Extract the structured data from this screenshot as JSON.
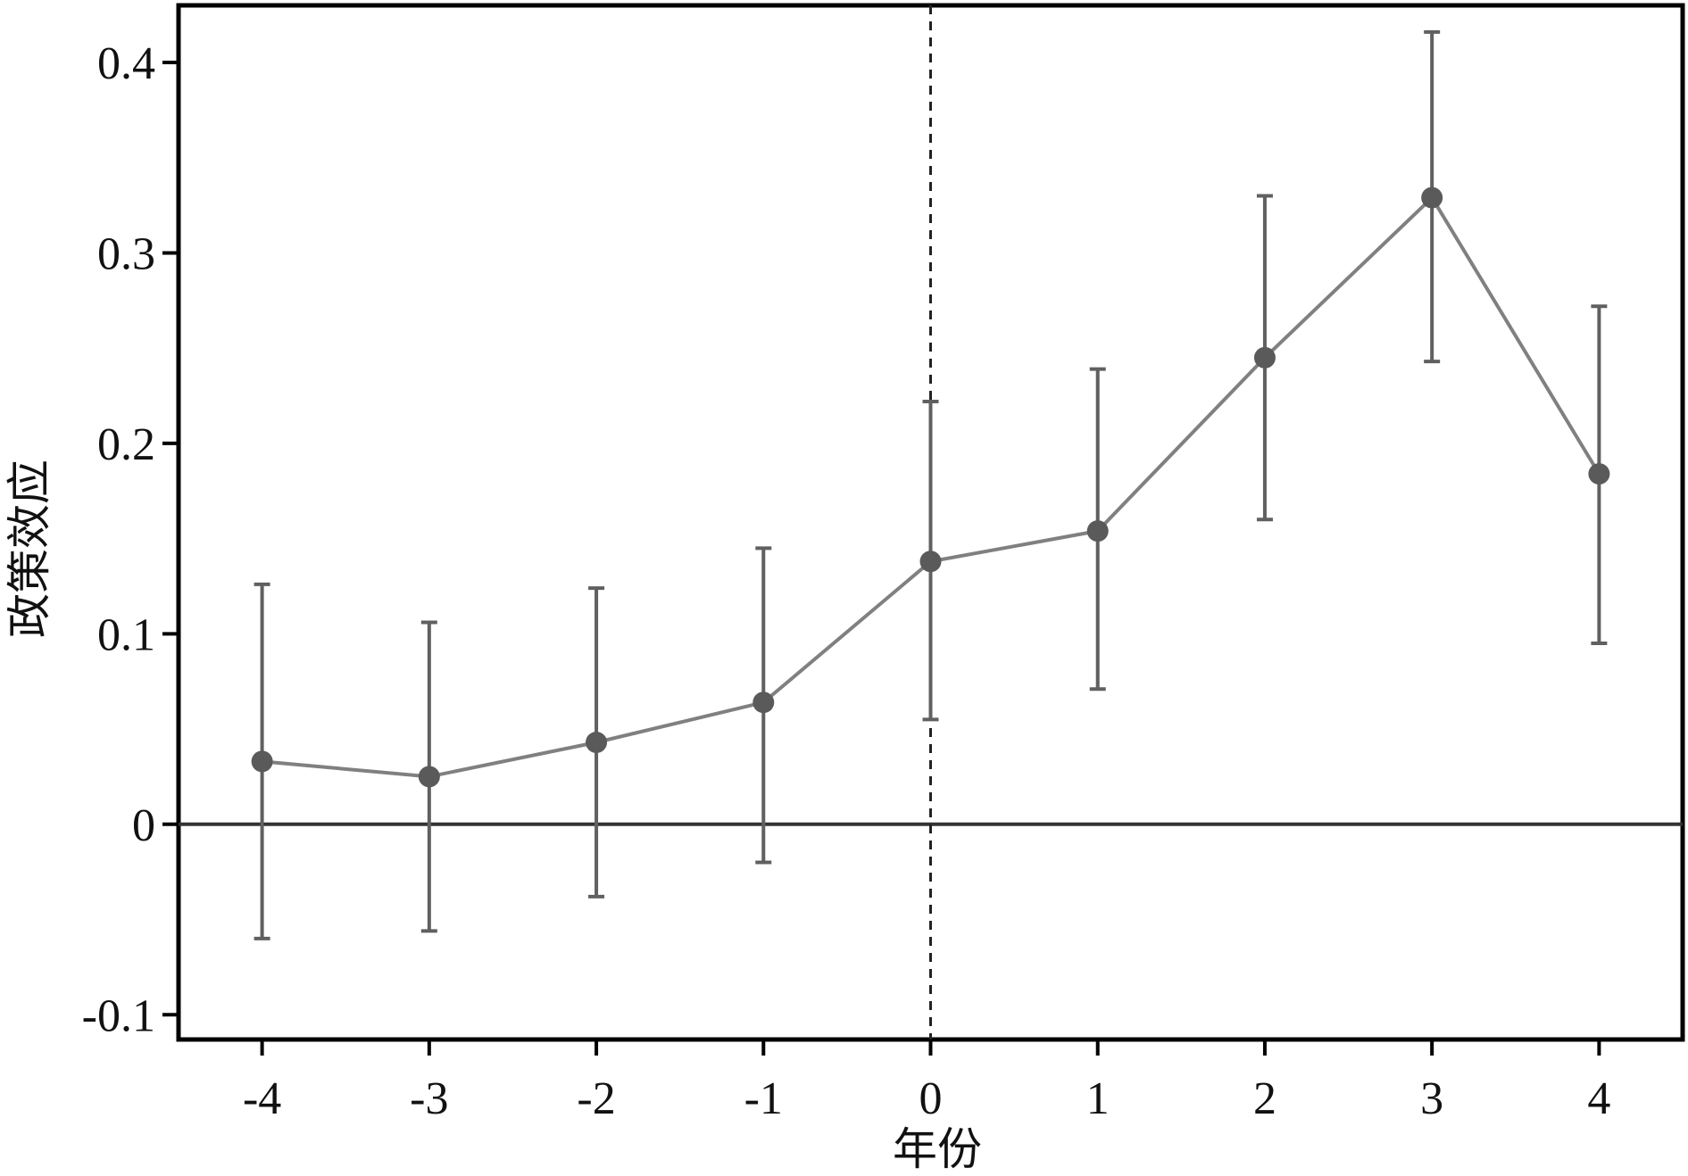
{
  "chart_data": {
    "type": "line",
    "xlabel": "年份",
    "ylabel": "政策效应",
    "x": [
      -4,
      -3,
      -2,
      -1,
      0,
      1,
      2,
      3,
      4
    ],
    "x_tick_labels": [
      "-4",
      "-3",
      "-2",
      "-1",
      "0",
      "1",
      "2",
      "3",
      "4"
    ],
    "xlim": [
      -4.5,
      4.5
    ],
    "ylim": [
      -0.113,
      0.43
    ],
    "y_ticks": [
      -0.1,
      0,
      0.1,
      0.2,
      0.3,
      0.4
    ],
    "y_tick_labels": [
      "-0.1",
      "0",
      "0.1",
      "0.2",
      "0.3",
      "0.4"
    ],
    "series": [
      {
        "values": [
          0.033,
          0.025,
          0.043,
          0.064,
          0.138,
          0.154,
          0.245,
          0.329,
          0.184
        ],
        "ci_lower": [
          -0.06,
          -0.056,
          -0.038,
          -0.02,
          0.055,
          0.071,
          0.16,
          0.243,
          0.095
        ],
        "ci_upper": [
          0.126,
          0.106,
          0.124,
          0.145,
          0.222,
          0.239,
          0.33,
          0.416,
          0.272
        ]
      }
    ],
    "reference_lines": {
      "horizontal_y": 0,
      "vertical_dashed_x": 0
    },
    "grid": false,
    "colors": {
      "line": "#808080",
      "error_bar": "#606060",
      "marker": "#5a5a5a",
      "axis": "#000000",
      "zero_line": "#333333"
    }
  }
}
